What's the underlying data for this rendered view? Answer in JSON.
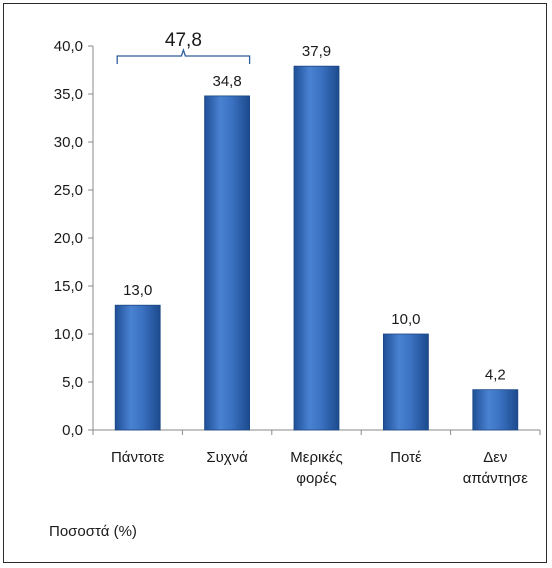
{
  "chart_data": {
    "type": "bar",
    "categories": [
      [
        "Πάντοτε"
      ],
      [
        "Συχνά"
      ],
      [
        "Μερικές",
        "φορές"
      ],
      [
        "Ποτέ"
      ],
      [
        "Δεν",
        "απάντησε"
      ]
    ],
    "values": [
      13.0,
      34.8,
      37.9,
      10.0,
      4.2
    ],
    "value_labels": [
      "13,0",
      "34,8",
      "37,9",
      "10,0",
      "4,2"
    ],
    "yticks": [
      "0,0",
      "5,0",
      "10,0",
      "15,0",
      "20,0",
      "25,0",
      "30,0",
      "35,0",
      "40,0"
    ],
    "ylim": [
      0,
      40
    ],
    "grid": false,
    "bar_color": "#3a6fbd",
    "bracket": {
      "label": "47,8",
      "spans": [
        0,
        1
      ],
      "color": "#2e5d9a"
    }
  },
  "footnote": "Ποσοστά (%)"
}
